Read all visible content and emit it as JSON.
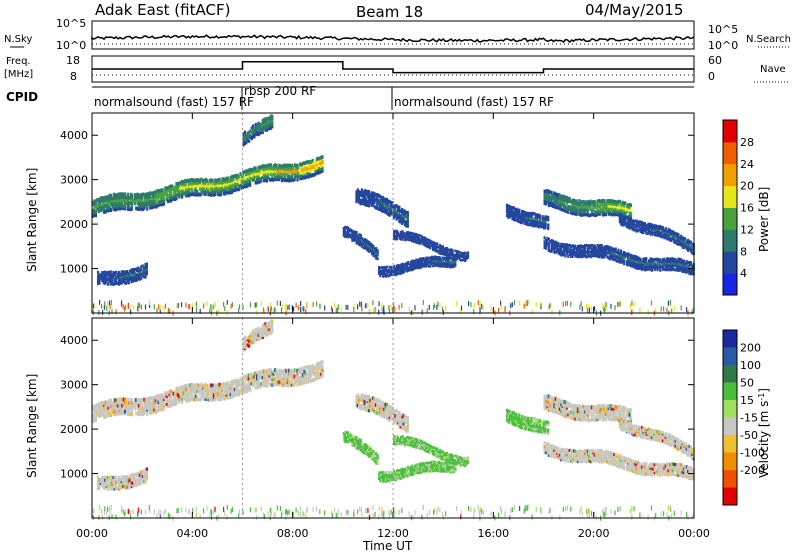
{
  "header": {
    "station": "Adak East (fitACF)",
    "beam": "Beam 18",
    "date": "04/May/2015"
  },
  "labels": {
    "nsky": "N.Sky",
    "nsearch": "N.Search",
    "freq": "Freq.",
    "mhz": "[MHz]",
    "nave": "Nave",
    "cpid": "CPID",
    "y_range": "Slant Range [km]",
    "x_axis": "Time UT",
    "power": "Power [dB]",
    "velocity_prefix": "Velocity [m s",
    "velocity_exp": "-1",
    "velocity_suffix": "]"
  },
  "noise_ticks": {
    "left_top": "10^5",
    "left_bot": "10^0",
    "right_top": "10^5",
    "right_bot": "10^0"
  },
  "freq_ticks": [
    "18",
    "8"
  ],
  "nave_ticks": [
    "60",
    "0"
  ],
  "cpid_labels": [
    {
      "text": "normalsound (fast) 157 RF",
      "start": 0
    },
    {
      "text": "rbsp 200 RF",
      "start": 6
    },
    {
      "text": "normalsound (fast) 157 RF",
      "start": 12
    }
  ],
  "chart_data": {
    "type": "heatmap",
    "x_unit": "hours UT",
    "xlim": [
      0,
      24
    ],
    "x_ticks": [
      "00:00",
      "04:00",
      "08:00",
      "12:00",
      "16:00",
      "20:00",
      "00:00"
    ],
    "ylim": [
      0,
      4500
    ],
    "y_ticks": [
      1000,
      2000,
      3000,
      4000
    ],
    "frequency_MHz": [
      {
        "start": 0,
        "end": 6,
        "value": 13
      },
      {
        "start": 6,
        "end": 10,
        "value": 17
      },
      {
        "start": 10,
        "end": 12,
        "value": 13
      },
      {
        "start": 12,
        "end": 18,
        "value": 11
      },
      {
        "start": 18,
        "end": 24,
        "value": 13
      }
    ],
    "power_scale": {
      "ticks": [
        "4",
        "8",
        "12",
        "16",
        "20",
        "24",
        "28"
      ],
      "colors": [
        "#1a24e6",
        "#24479e",
        "#2e7a6b",
        "#4aa33e",
        "#e6e61a",
        "#f0a000",
        "#f06000",
        "#e00000"
      ]
    },
    "velocity_scale": {
      "ticks": [
        "200",
        "100",
        "50",
        "15",
        "-15",
        "-50",
        "-100",
        "-200"
      ],
      "colors": [
        "#1a2a9e",
        "#2a5aa0",
        "#2e7a4a",
        "#4ac03c",
        "#a0e060",
        "#c8c8c0",
        "#f0c030",
        "#f09000",
        "#f05000",
        "#e00000"
      ]
    },
    "echo_bands": [
      {
        "t0": 0.0,
        "t1": 9.2,
        "r0": 2400,
        "r1": 3400,
        "width": 380,
        "pmin": 6,
        "pmax": 22,
        "velocity": "low"
      },
      {
        "t0": 6.0,
        "t1": 7.2,
        "r0": 3900,
        "r1": 4400,
        "width": 300,
        "pmin": 6,
        "pmax": 14,
        "velocity": "low"
      },
      {
        "t0": 0.2,
        "t1": 2.2,
        "r0": 800,
        "r1": 1000,
        "width": 300,
        "pmin": 4,
        "pmax": 10,
        "velocity": "low"
      },
      {
        "t0": 10.5,
        "t1": 12.6,
        "r0": 2700,
        "r1": 2200,
        "width": 350,
        "pmin": 4,
        "pmax": 10,
        "velocity": "low"
      },
      {
        "t0": 10.0,
        "t1": 11.4,
        "r0": 1900,
        "r1": 1300,
        "width": 250,
        "pmin": 4,
        "pmax": 10,
        "velocity": "green"
      },
      {
        "t0": 11.4,
        "t1": 14.5,
        "r0": 1000,
        "r1": 1200,
        "width": 220,
        "pmin": 4,
        "pmax": 9,
        "velocity": "green"
      },
      {
        "t0": 12.0,
        "t1": 15.0,
        "r0": 1800,
        "r1": 1300,
        "width": 200,
        "pmin": 4,
        "pmax": 8,
        "velocity": "green"
      },
      {
        "t0": 16.5,
        "t1": 18.2,
        "r0": 2400,
        "r1": 2000,
        "width": 300,
        "pmin": 4,
        "pmax": 10,
        "velocity": "green"
      },
      {
        "t0": 18.0,
        "t1": 21.5,
        "r0": 2600,
        "r1": 2300,
        "width": 350,
        "pmin": 6,
        "pmax": 18,
        "velocity": "low"
      },
      {
        "t0": 18.0,
        "t1": 24.0,
        "r0": 1600,
        "r1": 1000,
        "width": 280,
        "pmin": 4,
        "pmax": 10,
        "velocity": "low"
      },
      {
        "t0": 21.0,
        "t1": 24.0,
        "r0": 2200,
        "r1": 1500,
        "width": 250,
        "pmin": 4,
        "pmax": 10,
        "velocity": "low"
      }
    ]
  }
}
